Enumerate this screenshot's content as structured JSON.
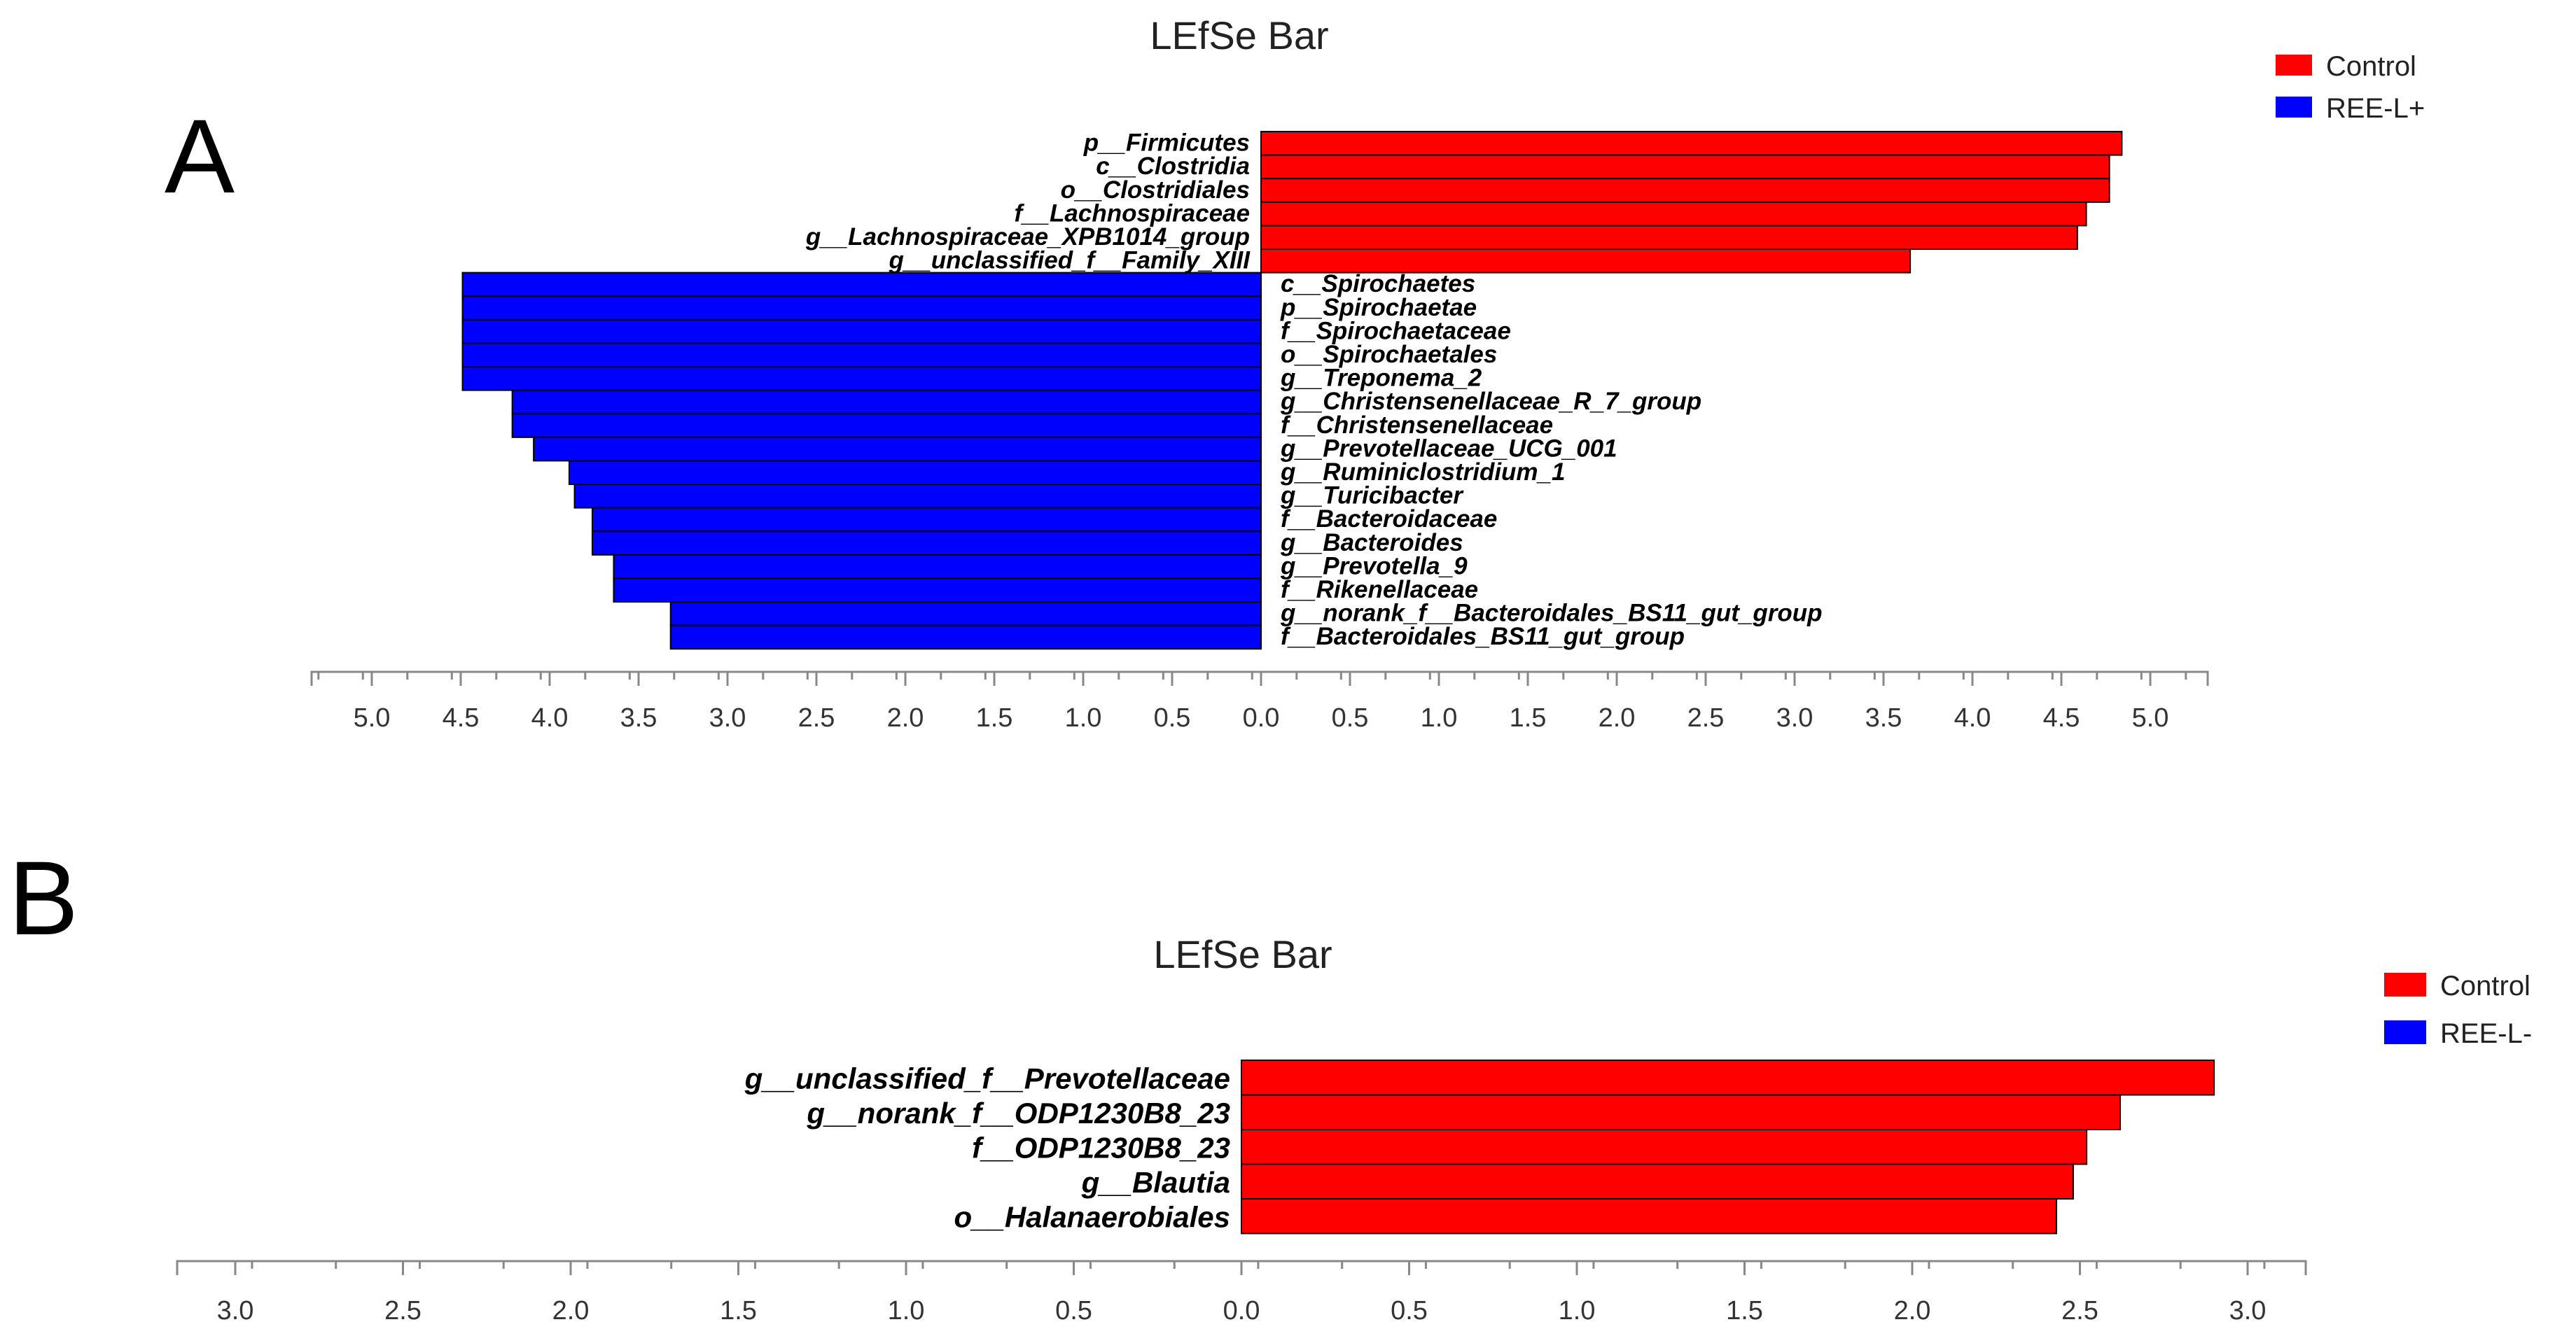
{
  "colors": {
    "control": "#ff0000",
    "treatment": "#0000ff"
  },
  "chart_data": [
    {
      "type": "bar",
      "orientation": "horizontal-diverging",
      "panel_letter": "A",
      "title": "LEfSe Bar",
      "xlabel": "",
      "ylabel": "",
      "legend": [
        {
          "label": "Control",
          "color": "#ff0000"
        },
        {
          "label": "REE-L+",
          "color": "#0000ff"
        }
      ],
      "legend_position": "top-right",
      "xlim": [
        -5.3,
        5.3
      ],
      "ticks": [
        "5.0",
        "4.5",
        "4.0",
        "3.5",
        "3.0",
        "2.5",
        "2.0",
        "1.5",
        "1.0",
        "0.5",
        "0.0",
        "0.5",
        "1.0",
        "1.5",
        "2.0",
        "2.5",
        "3.0",
        "3.5",
        "4.0",
        "4.5",
        "5.0"
      ],
      "bars": [
        {
          "label": "p__Firmicutes",
          "group": "Control",
          "value": 4.84
        },
        {
          "label": "c__Clostridia",
          "group": "Control",
          "value": 4.77
        },
        {
          "label": "o__Clostridiales",
          "group": "Control",
          "value": 4.77
        },
        {
          "label": "f__Lachnospiraceae",
          "group": "Control",
          "value": 4.64
        },
        {
          "label": "g__Lachnospiraceae_XPB1014_group",
          "group": "Control",
          "value": 4.59
        },
        {
          "label": "g__unclassified_f__Family_XIII",
          "group": "Control",
          "value": 3.65
        },
        {
          "label": "c__Spirochaetes",
          "group": "REE-L+",
          "value": 4.49
        },
        {
          "label": "p__Spirochaetae",
          "group": "REE-L+",
          "value": 4.49
        },
        {
          "label": "f__Spirochaetaceae",
          "group": "REE-L+",
          "value": 4.49
        },
        {
          "label": "o__Spirochaetales",
          "group": "REE-L+",
          "value": 4.49
        },
        {
          "label": "g__Treponema_2",
          "group": "REE-L+",
          "value": 4.49
        },
        {
          "label": "g__Christensenellaceae_R_7_group",
          "group": "REE-L+",
          "value": 4.21
        },
        {
          "label": "f__Christensenellaceae",
          "group": "REE-L+",
          "value": 4.21
        },
        {
          "label": "g__Prevotellaceae_UCG_001",
          "group": "REE-L+",
          "value": 4.09
        },
        {
          "label": "g__Ruminiclostridium_1",
          "group": "REE-L+",
          "value": 3.89
        },
        {
          "label": "g__Turicibacter",
          "group": "REE-L+",
          "value": 3.86
        },
        {
          "label": "f__Bacteroidaceae",
          "group": "REE-L+",
          "value": 3.76
        },
        {
          "label": "g__Bacteroides",
          "group": "REE-L+",
          "value": 3.76
        },
        {
          "label": "g__Prevotella_9",
          "group": "REE-L+",
          "value": 3.64
        },
        {
          "label": "f__Rikenellaceae",
          "group": "REE-L+",
          "value": 3.64
        },
        {
          "label": "g__norank_f__Bacteroidales_BS11_gut_group",
          "group": "REE-L+",
          "value": 3.32
        },
        {
          "label": "f__Bacteroidales_BS11_gut_group",
          "group": "REE-L+",
          "value": 3.32
        }
      ]
    },
    {
      "type": "bar",
      "orientation": "horizontal-diverging",
      "panel_letter": "B",
      "title": "LEfSe Bar",
      "xlabel": "",
      "ylabel": "",
      "legend": [
        {
          "label": "Control",
          "color": "#ff0000"
        },
        {
          "label": "REE-L-",
          "color": "#0000ff"
        }
      ],
      "legend_position": "top-right",
      "xlim": [
        -3.2,
        3.2
      ],
      "ticks": [
        "3.0",
        "2.5",
        "2.0",
        "1.5",
        "1.0",
        "0.5",
        "0.0",
        "0.5",
        "1.0",
        "1.5",
        "2.0",
        "2.5",
        "3.0"
      ],
      "bars": [
        {
          "label": "g__unclassified_f__Prevotellaceae",
          "group": "Control",
          "value": 2.9
        },
        {
          "label": "g__norank_f__ODP1230B8_23",
          "group": "Control",
          "value": 2.62
        },
        {
          "label": "f__ODP1230B8_23",
          "group": "Control",
          "value": 2.52
        },
        {
          "label": "g__Blautia",
          "group": "Control",
          "value": 2.48
        },
        {
          "label": "o__Halanaerobiales",
          "group": "Control",
          "value": 2.43
        }
      ]
    }
  ]
}
